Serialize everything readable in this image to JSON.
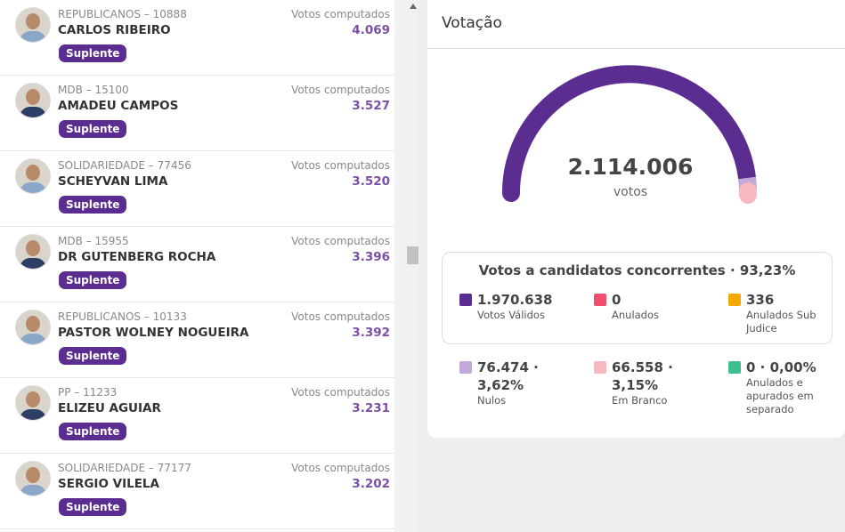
{
  "candidates": [
    {
      "party": "REPUBLICANOS – 10888",
      "name": "CARLOS RIBEIRO",
      "votes_label": "Votos computados",
      "votes": "4.069",
      "status": "Suplente"
    },
    {
      "party": "MDB – 15100",
      "name": "AMADEU CAMPOS",
      "votes_label": "Votos computados",
      "votes": "3.527",
      "status": "Suplente"
    },
    {
      "party": "SOLIDARIEDADE – 77456",
      "name": "SCHEYVAN LIMA",
      "votes_label": "Votos computados",
      "votes": "3.520",
      "status": "Suplente"
    },
    {
      "party": "MDB – 15955",
      "name": "DR GUTENBERG ROCHA",
      "votes_label": "Votos computados",
      "votes": "3.396",
      "status": "Suplente"
    },
    {
      "party": "REPUBLICANOS – 10133",
      "name": "PASTOR WOLNEY NOGUEIRA",
      "votes_label": "Votos computados",
      "votes": "3.392",
      "status": "Suplente"
    },
    {
      "party": "PP – 11233",
      "name": "ELIZEU AGUIAR",
      "votes_label": "Votos computados",
      "votes": "3.231",
      "status": "Suplente"
    },
    {
      "party": "SOLIDARIEDADE – 77177",
      "name": "SERGIO VILELA",
      "votes_label": "Votos computados",
      "votes": "3.202",
      "status": "Suplente"
    }
  ],
  "panel": {
    "title": "Votação",
    "total": "2.114.006",
    "total_unit": "votos",
    "summary_title": "Votos a candidatos concorrentes · 93,23%",
    "summary_items": [
      {
        "value": "1.970.638",
        "label": "Votos Válidos",
        "color": "#5c2d91"
      },
      {
        "value": "0",
        "label": "Anulados",
        "color": "#f0506e"
      },
      {
        "value": "336",
        "label": "Anulados Sub Judice",
        "color": "#f5a800"
      }
    ],
    "other_items": [
      {
        "value": "76.474 · 3,62%",
        "label": "Nulos",
        "color": "#c3a9d9"
      },
      {
        "value": "66.558 · 3,15%",
        "label": "Em Branco",
        "color": "#f8b8c0"
      },
      {
        "value": "0 · 0,00%",
        "label": "Anulados e apurados em separado",
        "color": "#3dbf8f"
      }
    ]
  }
}
